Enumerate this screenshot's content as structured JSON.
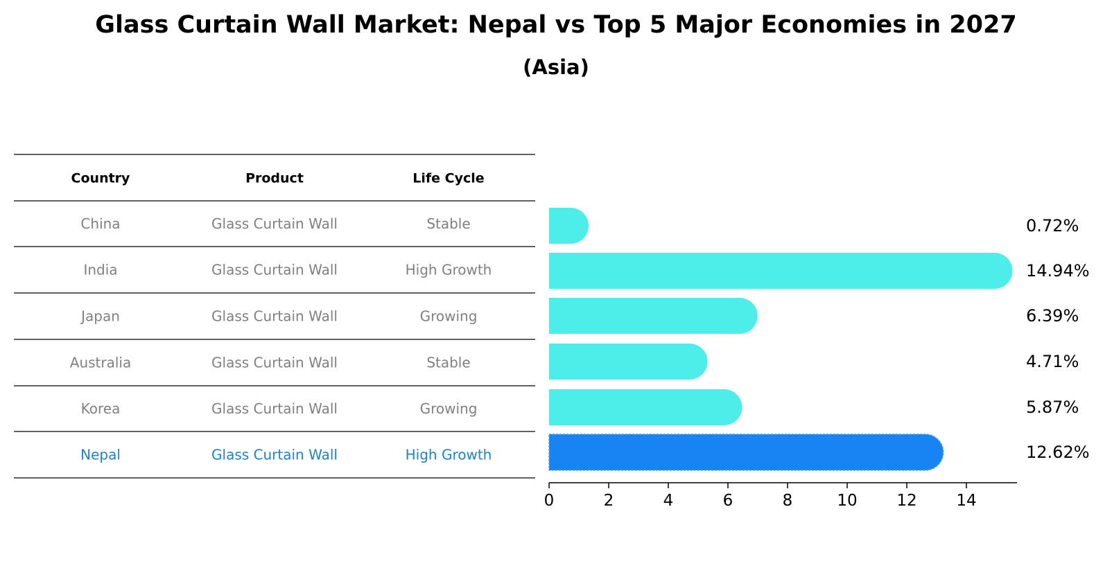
{
  "chart_data": {
    "type": "bar",
    "orientation": "horizontal",
    "title": "Glass Curtain Wall Market: Nepal vs Top 5 Major Economies in 2027",
    "subtitle": "(Asia)",
    "table": {
      "headers": [
        "Country",
        "Product",
        "Life Cycle"
      ],
      "rows": [
        [
          "China",
          "Glass Curtain Wall",
          "Stable"
        ],
        [
          "India",
          "Glass Curtain Wall",
          "High Growth"
        ],
        [
          "Japan",
          "Glass Curtain Wall",
          "Growing"
        ],
        [
          "Australia",
          "Glass Curtain Wall",
          "Stable"
        ],
        [
          "Korea",
          "Glass Curtain Wall",
          "Growing"
        ],
        [
          "Nepal",
          "Glass Curtain Wall",
          "High Growth"
        ]
      ]
    },
    "categories": [
      "China",
      "India",
      "Japan",
      "Australia",
      "Korea",
      "Nepal"
    ],
    "values": [
      0.72,
      14.94,
      6.39,
      4.71,
      5.87,
      12.62
    ],
    "value_labels": [
      "0.72%",
      "14.94%",
      "6.39%",
      "4.71%",
      "5.87%",
      "12.62%"
    ],
    "highlight": "Nepal",
    "xlim": [
      0,
      15.7
    ],
    "xticks": [
      0,
      2,
      4,
      6,
      8,
      10,
      12,
      14
    ],
    "xlabel": "",
    "ylabel": "",
    "grid": false,
    "colors": {
      "bar": "#4deeea",
      "highlight_bar": "#1884f4",
      "table_text": "#808080",
      "highlight_text": "#1884d4",
      "line": "#000000"
    }
  }
}
